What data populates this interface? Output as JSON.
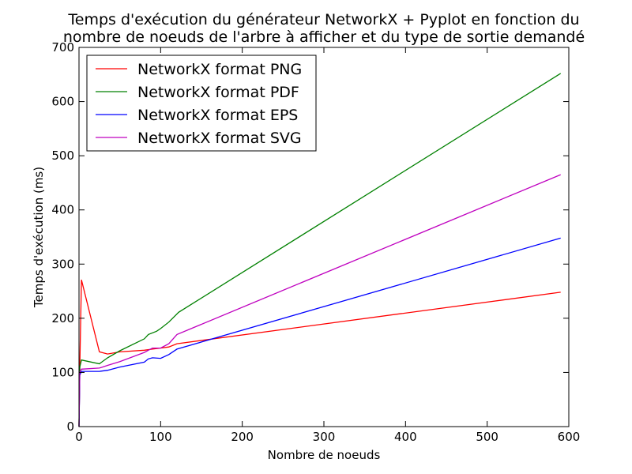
{
  "chart_data": {
    "type": "line",
    "title_line1": "Temps d'exécution du générateur NetworkX + Pyplot en fonction du",
    "title_line2": "nombre de noeuds de l'arbre à afficher et du type de sortie demandé",
    "xlabel": "Nombre de noeuds",
    "ylabel": "Temps d'exécution (ms)",
    "xlim": [
      0,
      600
    ],
    "ylim": [
      0,
      700
    ],
    "xticks": [
      0,
      100,
      200,
      300,
      400,
      500,
      600
    ],
    "yticks": [
      0,
      100,
      200,
      300,
      400,
      500,
      600,
      700
    ],
    "grid": false,
    "legend_position": "top-left",
    "series": [
      {
        "name": "NetworkX format PNG",
        "color": "#ff0000",
        "x": [
          0,
          1,
          3,
          25,
          35,
          50,
          80,
          90,
          100,
          110,
          120,
          590
        ],
        "y": [
          0,
          110,
          271,
          138,
          134,
          138,
          141,
          143,
          145,
          147,
          153,
          248
        ]
      },
      {
        "name": "NetworkX format PDF",
        "color": "#008000",
        "x": [
          0,
          1,
          3,
          25,
          35,
          50,
          80,
          85,
          95,
          100,
          110,
          122,
          590
        ],
        "y": [
          0,
          110,
          123,
          116,
          127,
          140,
          162,
          170,
          176,
          181,
          193,
          211,
          652
        ]
      },
      {
        "name": "NetworkX format EPS",
        "color": "#0000ff",
        "x": [
          0,
          1,
          3,
          25,
          35,
          50,
          80,
          85,
          90,
          100,
          110,
          120,
          590
        ],
        "y": [
          0,
          95,
          102,
          102,
          104,
          110,
          119,
          125,
          127,
          126,
          133,
          143,
          348
        ]
      },
      {
        "name": "NetworkX format SVG",
        "color": "#bf00bf",
        "x": [
          0,
          1,
          3,
          25,
          35,
          50,
          80,
          90,
          100,
          110,
          120,
          590
        ],
        "y": [
          0,
          100,
          106,
          108,
          113,
          120,
          137,
          145,
          145,
          153,
          170,
          465
        ]
      }
    ]
  }
}
